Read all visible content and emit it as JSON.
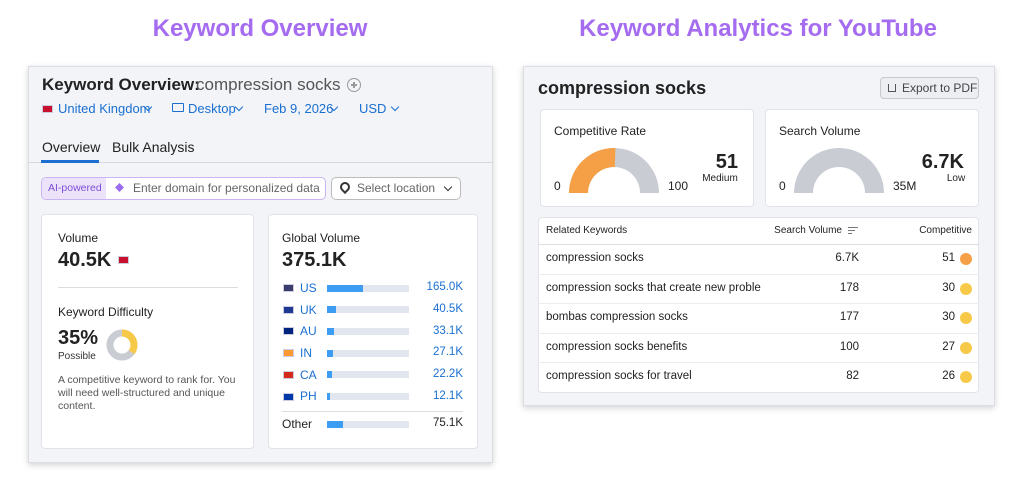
{
  "titles": {
    "left": "Keyword Overview",
    "right": "Keyword Analytics for YouTube"
  },
  "overview": {
    "heading": "Keyword Overview:",
    "keyword": "compression socks",
    "filters": [
      "United Kingdom",
      "Desktop",
      "Feb 9, 2026",
      "USD"
    ],
    "tabs": [
      "Overview",
      "Bulk Analysis"
    ],
    "ai_label": "AI-powered",
    "domain_placeholder": "Enter domain for personalized data",
    "location_placeholder": "Select location",
    "volume": {
      "label": "Volume",
      "value": "40.5K"
    },
    "difficulty": {
      "label": "Keyword Difficulty",
      "value": 35,
      "value_label": "35%",
      "level": "Possible",
      "description": "A competitive keyword to rank for. You will need well-structured and unique content.",
      "color": "#f7c948"
    },
    "global_volume": {
      "label": "Global Volume",
      "total": 375100,
      "total_label": "375.1K",
      "bar_color": "#3d9df2",
      "countries": [
        {
          "code": "US",
          "value": 165000,
          "label": "165.0K"
        },
        {
          "code": "UK",
          "value": 40500,
          "label": "40.5K"
        },
        {
          "code": "AU",
          "value": 33100,
          "label": "33.1K"
        },
        {
          "code": "IN",
          "value": 27100,
          "label": "27.1K"
        },
        {
          "code": "CA",
          "value": 22200,
          "label": "22.2K"
        },
        {
          "code": "PH",
          "value": 12100,
          "label": "12.1K"
        }
      ],
      "other": {
        "name": "Other",
        "value": 75100,
        "label": "75.1K"
      }
    }
  },
  "youtube": {
    "keyword": "compression socks",
    "export": "Export to PDF",
    "competitive_rate": {
      "label": "Competitive Rate",
      "value": 51,
      "min": 0,
      "max": 100,
      "level": "Medium",
      "color": "#f5a047"
    },
    "search_volume": {
      "label": "Search Volume",
      "value": 6700,
      "value_label": "6.7K",
      "min": 0,
      "max": 35000000,
      "max_label": "35M",
      "level": "Low",
      "color": "#2fae6a"
    },
    "table": {
      "columns": [
        "Related Keywords",
        "Search Volume",
        "Competitive"
      ],
      "rows": [
        {
          "keyword": "compression socks",
          "volume": "6.7K",
          "competitive": 51,
          "color": "#f5a047"
        },
        {
          "keyword": "compression socks that create new proble",
          "volume": 178,
          "competitive": 30,
          "color": "#f7c948"
        },
        {
          "keyword": "bombas compression socks",
          "volume": 177,
          "competitive": 30,
          "color": "#f7c948"
        },
        {
          "keyword": "compression socks benefits",
          "volume": 100,
          "competitive": 27,
          "color": "#f7c948"
        },
        {
          "keyword": "compression socks for travel",
          "volume": 82,
          "competitive": 26,
          "color": "#f7c948"
        }
      ]
    }
  }
}
